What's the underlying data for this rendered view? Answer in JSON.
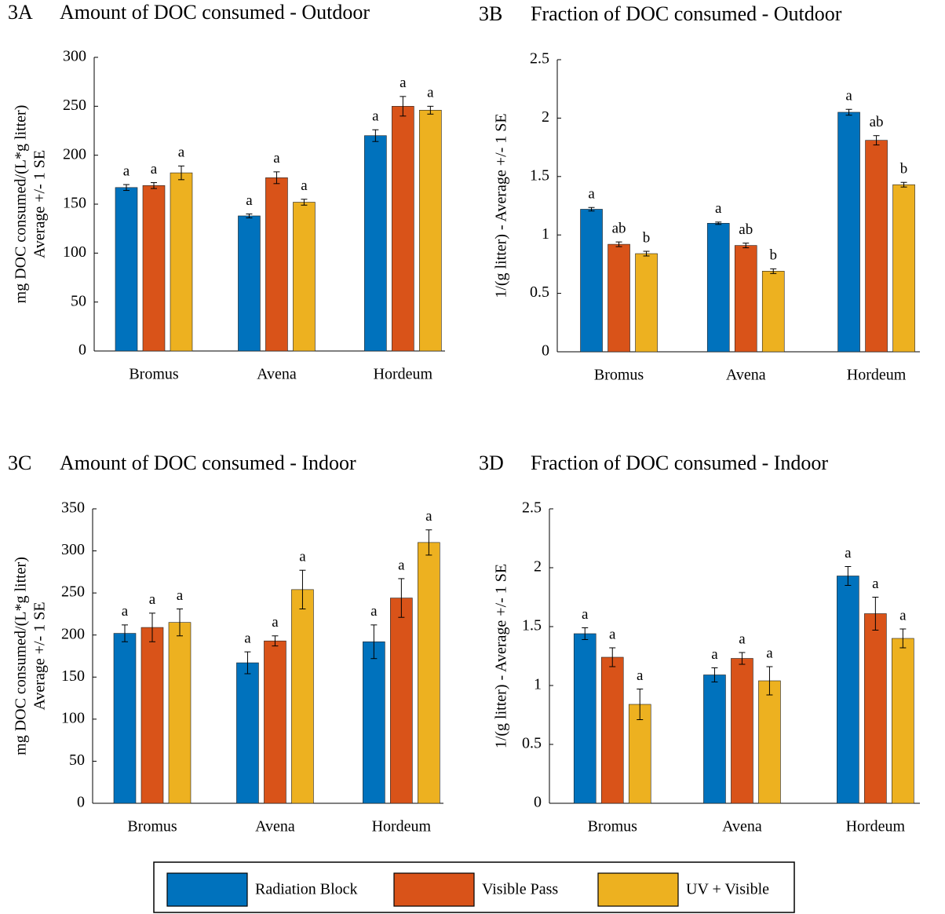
{
  "chart_data": [
    {
      "type": "bar",
      "label": "3A",
      "title": "Amount of DOC consumed - Outdoor",
      "ylabel": [
        "mg DOC consumed/(L*g litter)",
        "Average +/- 1 SE"
      ],
      "categories": [
        "Bromus",
        "Avena",
        "Hordeum"
      ],
      "ylim": [
        0,
        300
      ],
      "yticks": [
        0,
        50,
        100,
        150,
        200,
        250,
        300
      ],
      "series": [
        {
          "values": [
            167,
            138,
            220
          ],
          "errors": [
            3,
            2,
            6
          ],
          "letters": [
            "a",
            "a",
            "a"
          ]
        },
        {
          "values": [
            169,
            177,
            250
          ],
          "errors": [
            3,
            6,
            10
          ],
          "letters": [
            "a",
            "a",
            "a"
          ]
        },
        {
          "values": [
            182,
            152,
            246
          ],
          "errors": [
            7,
            3,
            4
          ],
          "letters": [
            "a",
            "a",
            "a"
          ]
        }
      ]
    },
    {
      "type": "bar",
      "label": "3B",
      "title": "Fraction of DOC consumed - Outdoor",
      "ylabel": [
        "1/(g litter) - Average +/- 1 SE"
      ],
      "categories": [
        "Bromus",
        "Avena",
        "Hordeum"
      ],
      "ylim": [
        0,
        2.5
      ],
      "yticks": [
        0,
        0.5,
        1,
        1.5,
        2,
        2.5
      ],
      "series": [
        {
          "values": [
            1.22,
            1.1,
            2.05
          ],
          "errors": [
            0.015,
            0.01,
            0.025
          ],
          "letters": [
            "a",
            "a",
            "a"
          ]
        },
        {
          "values": [
            0.92,
            0.91,
            1.81
          ],
          "errors": [
            0.02,
            0.02,
            0.04
          ],
          "letters": [
            "ab",
            "ab",
            "ab"
          ]
        },
        {
          "values": [
            0.84,
            0.69,
            1.43
          ],
          "errors": [
            0.02,
            0.02,
            0.02
          ],
          "letters": [
            "b",
            "b",
            "b"
          ]
        }
      ]
    },
    {
      "type": "bar",
      "label": "3C",
      "title": "Amount of DOC consumed - Indoor",
      "ylabel": [
        "mg DOC consumed/(L*g litter)",
        "Average +/- 1 SE"
      ],
      "categories": [
        "Bromus",
        "Avena",
        "Hordeum"
      ],
      "ylim": [
        0,
        350
      ],
      "yticks": [
        0,
        50,
        100,
        150,
        200,
        250,
        300,
        350
      ],
      "series": [
        {
          "values": [
            202,
            167,
            192
          ],
          "errors": [
            10,
            13,
            20
          ],
          "letters": [
            "a",
            "a",
            "a"
          ]
        },
        {
          "values": [
            209,
            193,
            244
          ],
          "errors": [
            17,
            6,
            23
          ],
          "letters": [
            "a",
            "a",
            "a"
          ]
        },
        {
          "values": [
            215,
            254,
            310
          ],
          "errors": [
            16,
            23,
            15
          ],
          "letters": [
            "a",
            "a",
            "a"
          ]
        }
      ]
    },
    {
      "type": "bar",
      "label": "3D",
      "title": "Fraction of DOC consumed - Indoor",
      "ylabel": [
        "1/(g litter) - Average +/- 1 SE"
      ],
      "categories": [
        "Bromus",
        "Avena",
        "Hordeum"
      ],
      "ylim": [
        0,
        2.5
      ],
      "yticks": [
        0,
        0.5,
        1,
        1.5,
        2,
        2.5
      ],
      "series": [
        {
          "values": [
            1.44,
            1.09,
            1.93
          ],
          "errors": [
            0.05,
            0.06,
            0.08
          ],
          "letters": [
            "a",
            "a",
            "a"
          ]
        },
        {
          "values": [
            1.24,
            1.23,
            1.61
          ],
          "errors": [
            0.08,
            0.05,
            0.14
          ],
          "letters": [
            "a",
            "a",
            "a"
          ]
        },
        {
          "values": [
            0.84,
            1.04,
            1.4
          ],
          "errors": [
            0.13,
            0.12,
            0.08
          ],
          "letters": [
            "a",
            "a",
            "a"
          ]
        }
      ]
    }
  ],
  "legend": [
    {
      "name": "Radiation Block",
      "color": "#0072bd"
    },
    {
      "name": "Visible Pass",
      "color": "#d95319"
    },
    {
      "name": "UV + Visible",
      "color": "#edb120"
    }
  ]
}
